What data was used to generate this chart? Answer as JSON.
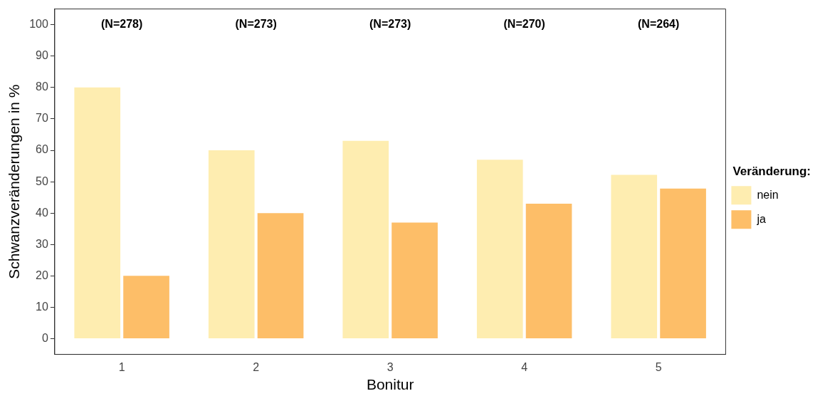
{
  "chart_data": {
    "type": "bar",
    "xlabel": "Bonitur",
    "ylabel": "Schwanzveränderungen in %",
    "legend_title": "Veränderung:",
    "legend": "right",
    "grid": false,
    "categories": [
      "1",
      "2",
      "3",
      "4",
      "5"
    ],
    "series": [
      {
        "name": "nein",
        "color": "#feedb0",
        "values": [
          80,
          60,
          63,
          57,
          52.2
        ]
      },
      {
        "name": "ja",
        "color": "#fdbe68",
        "values": [
          20,
          40,
          37,
          43,
          47.8
        ]
      }
    ],
    "ylim": [
      -5,
      105
    ],
    "yticks": [
      0,
      10,
      20,
      30,
      40,
      50,
      60,
      70,
      80,
      90,
      100
    ],
    "annotations": [
      "(N=278)",
      "(N=273)",
      "(N=273)",
      "(N=270)",
      "(N=264)"
    ]
  }
}
